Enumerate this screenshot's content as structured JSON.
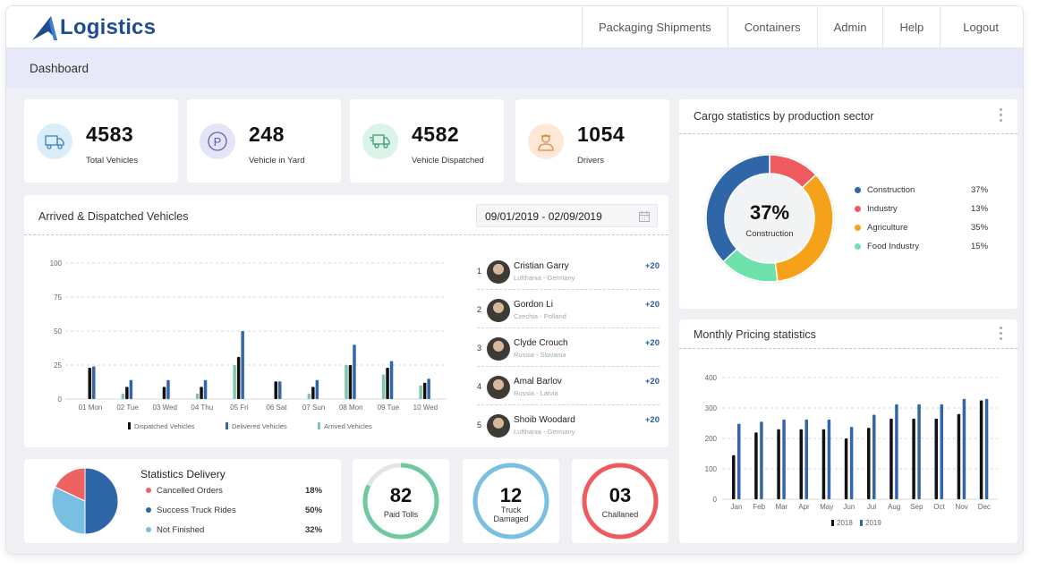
{
  "app": {
    "title": "Logistics"
  },
  "nav": [
    "Packaging Shipments",
    "Containers",
    "Admin",
    "Help",
    "Logout"
  ],
  "breadcrumb": "Dashboard",
  "stats": [
    {
      "value": "4583",
      "label": "Total Vehicles",
      "icon": "truck-icon",
      "color": "#d9eef8"
    },
    {
      "value": "248",
      "label": "Vehicle in Yard",
      "icon": "parking-icon",
      "color": "#e4e4f6"
    },
    {
      "value": "4582",
      "label": "Vehicle Dispatched",
      "icon": "delivery-truck-icon",
      "color": "#dcf3e9"
    },
    {
      "value": "1054",
      "label": "Drivers",
      "icon": "driver-icon",
      "color": "#fde8d7"
    }
  ],
  "arrived": {
    "title": "Arrived & Dispatched Vehicles",
    "date_range": "09/01/2019 - 02/09/2019",
    "legend": [
      "Dispatched Vehicles",
      "Delivered Vehicles",
      "Arrived Vehicles"
    ]
  },
  "drivers": [
    {
      "idx": "1",
      "name": "Cristian Garry",
      "sub": "Lufthania - Germany",
      "delta": "+20"
    },
    {
      "idx": "2",
      "name": "Gordon Li",
      "sub": "Czechia - Polland",
      "delta": "+20"
    },
    {
      "idx": "3",
      "name": "Clyde Crouch",
      "sub": "Russia - Slovania",
      "delta": "+20"
    },
    {
      "idx": "4",
      "name": "Amal Barlov",
      "sub": "Russia - Latvia",
      "delta": "+20"
    },
    {
      "idx": "5",
      "name": "Shoib Woodard",
      "sub": "Lufthania - Germany",
      "delta": "+20"
    }
  ],
  "cargo": {
    "title": "Cargo statistics by production sector",
    "center_value": "37%",
    "center_label": "Construction",
    "items": [
      {
        "label": "Construction",
        "pct": "37%",
        "color": "#2f66a8"
      },
      {
        "label": "Industry",
        "pct": "13%",
        "color": "#ef5a5f"
      },
      {
        "label": "Agriculture",
        "pct": "35%",
        "color": "#f6a11a"
      },
      {
        "label": "Food Industry",
        "pct": "15%",
        "color": "#6ee2aa"
      }
    ]
  },
  "pricing": {
    "title": "Monthly Pricing statistics"
  },
  "delivery": {
    "title": "Statistics Delivery",
    "items": [
      {
        "label": "Cancelled Orders",
        "pct": "18%",
        "color": "#ef6262"
      },
      {
        "label": "Success Truck Rides",
        "pct": "50%",
        "color": "#2f66a8"
      },
      {
        "label": "Not Finished",
        "pct": "32%",
        "color": "#78bfe2"
      }
    ]
  },
  "rings": [
    {
      "value": "82",
      "label": "Paid Tolls",
      "fraction": 0.82,
      "color": "#6fc8a0"
    },
    {
      "value": "12",
      "label": "Truck Damaged",
      "fraction": 1.0,
      "color": "#78bfe2"
    },
    {
      "value": "03",
      "label": "Challaned",
      "fraction": 1.0,
      "color": "#ef5a5f"
    }
  ],
  "chart_data": [
    {
      "type": "bar",
      "categories": [
        "01 Mon",
        "02 Tue",
        "03 Wed",
        "04 Thu",
        "05 Fri",
        "06 Sat",
        "07 Sun",
        "08 Mon",
        "09 Tue",
        "10 Wed"
      ],
      "series": [
        {
          "name": "Arrived Vehicles",
          "values": [
            0,
            4,
            0,
            4,
            25,
            0,
            4,
            25,
            18,
            10
          ],
          "color": "#7ec8a8"
        },
        {
          "name": "Dispatched Vehicles",
          "values": [
            23,
            9,
            9,
            9,
            31,
            13,
            9,
            25,
            23,
            12
          ],
          "color": "#111111"
        },
        {
          "name": "Delivered Vehicles",
          "values": [
            24,
            14,
            14,
            14,
            50,
            13,
            14,
            40,
            28,
            15
          ],
          "color": "#3266a8"
        }
      ],
      "ylim": [
        0,
        100
      ],
      "yticks": [
        0,
        25,
        50,
        75,
        100
      ],
      "grid": true,
      "legend": "bottom"
    },
    {
      "type": "pie",
      "title": "Cargo statistics by production sector",
      "categories": [
        "Construction",
        "Industry",
        "Agriculture",
        "Food Industry"
      ],
      "values": [
        37,
        13,
        35,
        15
      ]
    },
    {
      "type": "bar",
      "title": "Monthly Pricing statistics",
      "categories": [
        "Jan",
        "Feb",
        "Mar",
        "Apr",
        "May",
        "Jun",
        "Jul",
        "Aug",
        "Sep",
        "Oct",
        "Nov",
        "Dec"
      ],
      "series": [
        {
          "name": "2018",
          "values": [
            145,
            220,
            230,
            230,
            230,
            200,
            235,
            265,
            265,
            265,
            280,
            325
          ],
          "color": "#111111"
        },
        {
          "name": "2019",
          "values": [
            248,
            255,
            262,
            262,
            262,
            238,
            278,
            312,
            312,
            312,
            330,
            330
          ],
          "color": "#3266a8"
        }
      ],
      "ylim": [
        0,
        400
      ],
      "yticks": [
        0,
        100,
        200,
        300,
        400
      ],
      "grid": true,
      "legend": "bottom"
    },
    {
      "type": "pie",
      "title": "Statistics Delivery",
      "categories": [
        "Cancelled Orders",
        "Success Truck Rides",
        "Not Finished"
      ],
      "values": [
        18,
        50,
        32
      ]
    }
  ]
}
